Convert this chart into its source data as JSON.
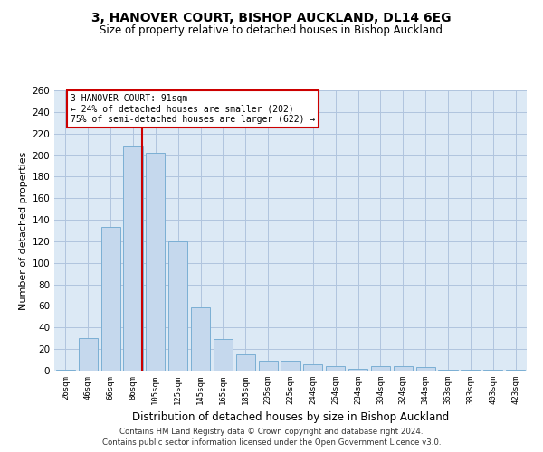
{
  "title_line1": "3, HANOVER COURT, BISHOP AUCKLAND, DL14 6EG",
  "title_line2": "Size of property relative to detached houses in Bishop Auckland",
  "xlabel": "Distribution of detached houses by size in Bishop Auckland",
  "ylabel": "Number of detached properties",
  "categories": [
    "26sqm",
    "46sqm",
    "66sqm",
    "86sqm",
    "105sqm",
    "125sqm",
    "145sqm",
    "165sqm",
    "185sqm",
    "205sqm",
    "225sqm",
    "244sqm",
    "264sqm",
    "284sqm",
    "304sqm",
    "324sqm",
    "344sqm",
    "363sqm",
    "383sqm",
    "403sqm",
    "423sqm"
  ],
  "values": [
    1,
    30,
    133,
    208,
    202,
    120,
    59,
    29,
    15,
    9,
    9,
    6,
    4,
    2,
    4,
    4,
    3,
    1,
    1,
    1,
    1
  ],
  "bar_color": "#c5d8ed",
  "bar_edge_color": "#7bafd4",
  "bar_edge_width": 0.7,
  "red_line_color": "#cc0000",
  "annotation_text_line1": "3 HANOVER COURT: 91sqm",
  "annotation_text_line2": "← 24% of detached houses are smaller (202)",
  "annotation_text_line3": "75% of semi-detached houses are larger (622) →",
  "annotation_box_color": "#ffffff",
  "annotation_box_edge_color": "#cc0000",
  "ylim": [
    0,
    260
  ],
  "yticks": [
    0,
    20,
    40,
    60,
    80,
    100,
    120,
    140,
    160,
    180,
    200,
    220,
    240,
    260
  ],
  "grid_color": "#b0c4de",
  "background_color": "#dce9f5",
  "footer_line1": "Contains HM Land Registry data © Crown copyright and database right 2024.",
  "footer_line2": "Contains public sector information licensed under the Open Government Licence v3.0."
}
